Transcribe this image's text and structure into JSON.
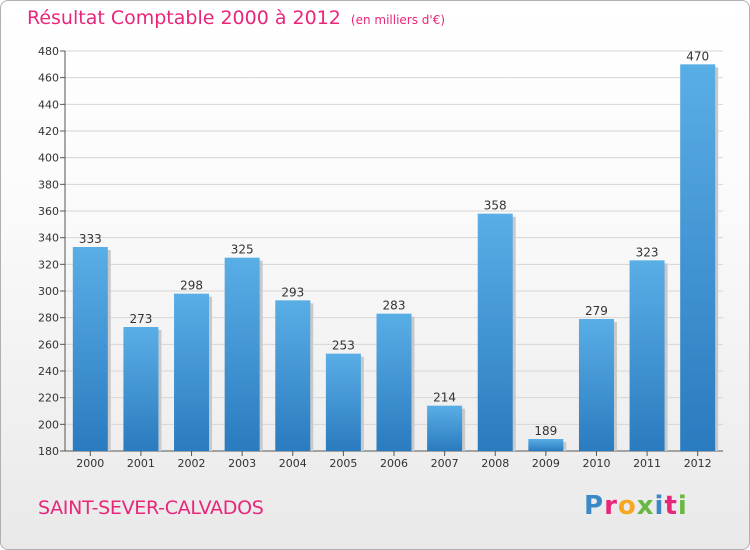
{
  "header": {
    "title": "Résultat Comptable 2000 à 2012",
    "subtitle": "(en milliers d'€)"
  },
  "footer": {
    "city": "SAINT-SEVER-CALVADOS",
    "brand": [
      "P",
      "r",
      "o",
      "x",
      "i",
      "t",
      "i"
    ]
  },
  "colors": {
    "title": "#e8267a",
    "bar_top": "#5aaee6",
    "bar_bottom": "#2a7bbf"
  },
  "chart_data": {
    "type": "bar",
    "title": "Résultat Comptable 2000 à 2012",
    "subtitle": "(en milliers d'€)",
    "xlabel": "",
    "ylabel": "",
    "categories": [
      "2000",
      "2001",
      "2002",
      "2003",
      "2004",
      "2005",
      "2006",
      "2007",
      "2008",
      "2009",
      "2010",
      "2011",
      "2012"
    ],
    "values": [
      333,
      273,
      298,
      325,
      293,
      253,
      283,
      214,
      358,
      189,
      279,
      323,
      470
    ],
    "ylim": [
      180,
      480
    ],
    "yticks": [
      180,
      200,
      220,
      240,
      260,
      280,
      300,
      320,
      340,
      360,
      380,
      400,
      420,
      440,
      460,
      480
    ],
    "grid": true
  }
}
